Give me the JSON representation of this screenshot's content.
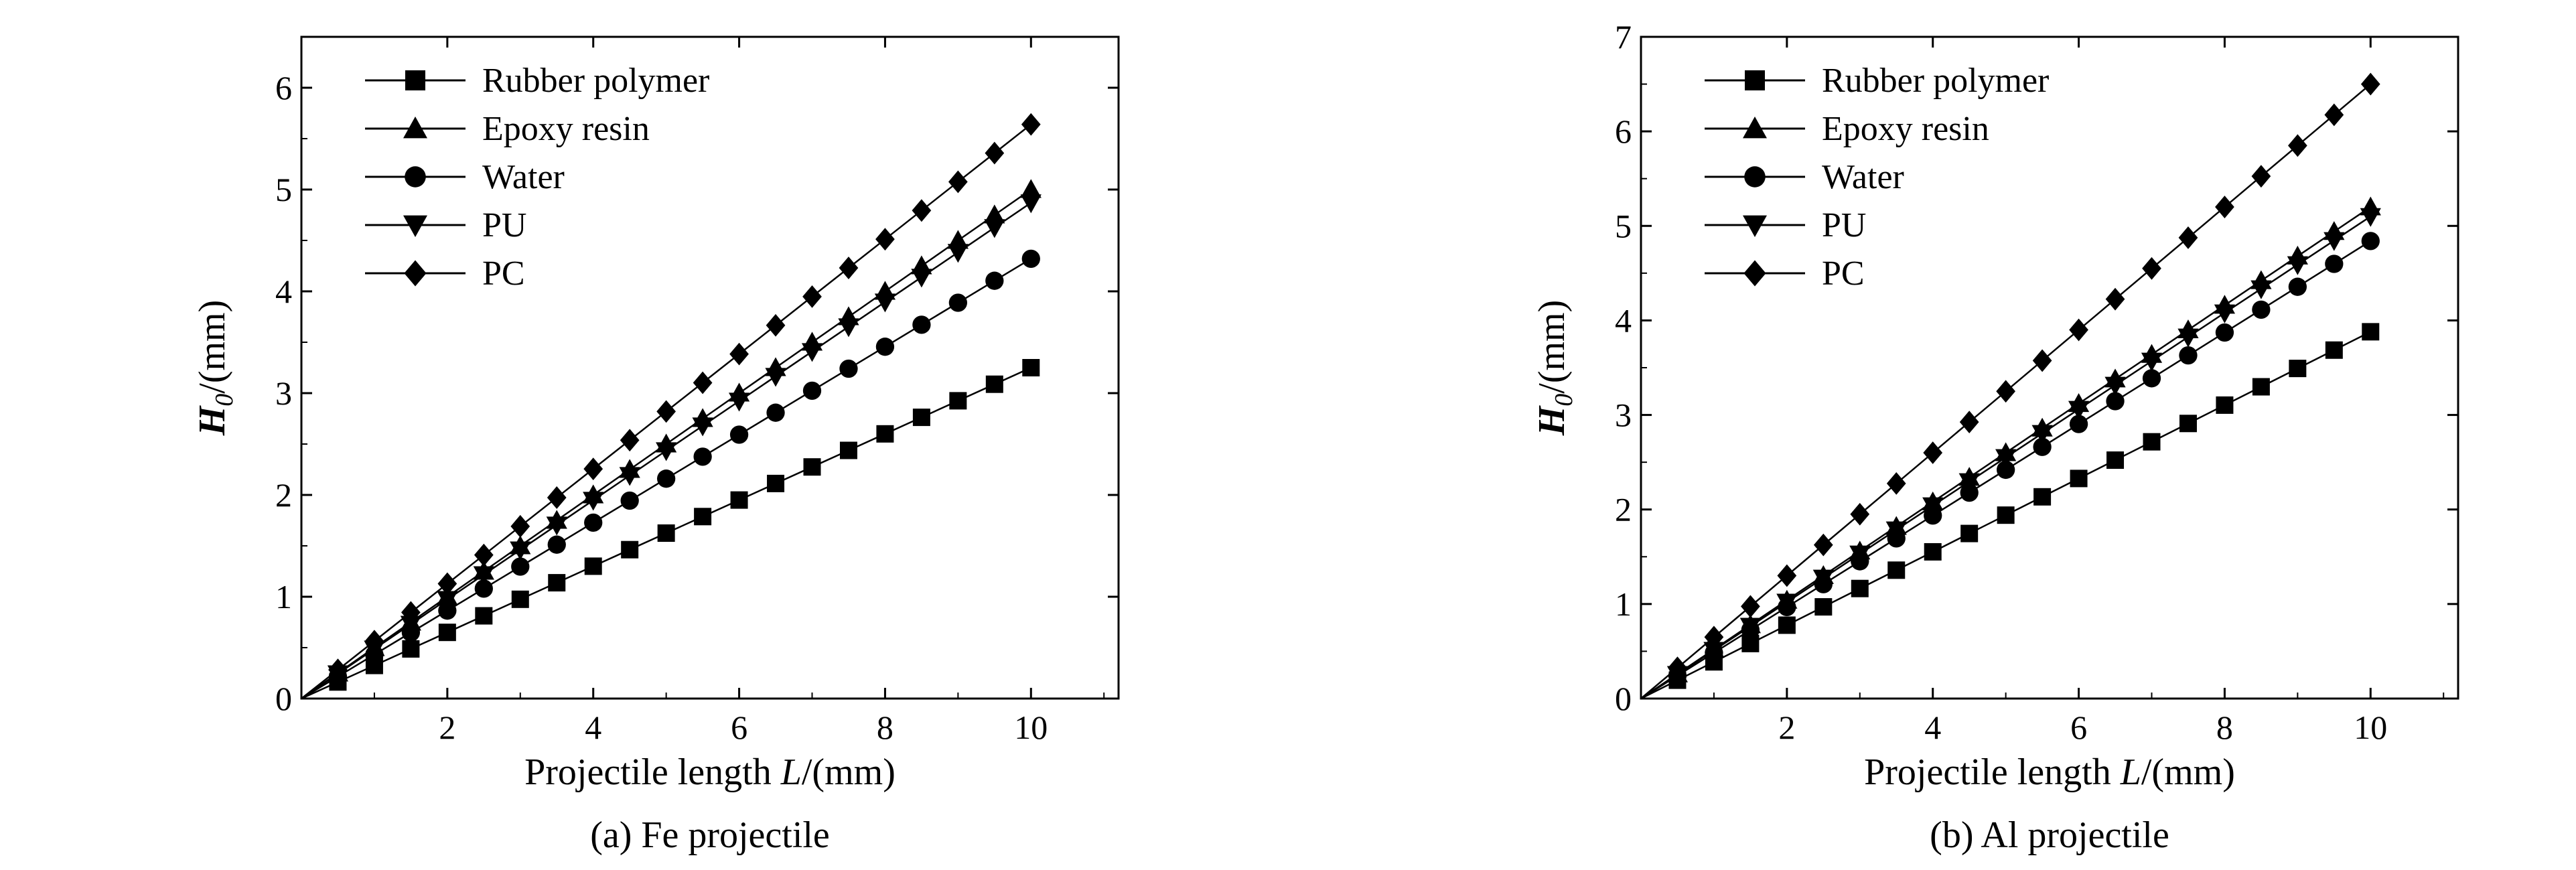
{
  "chart_data": [
    {
      "type": "line",
      "caption": "(a) Fe projectile",
      "xlabel_prefix": "Projectile length ",
      "xlabel_var": "L",
      "xlabel_unit": "/(mm)",
      "ylabel_var": "H",
      "ylabel_sub": "0",
      "ylabel_unit": "/(mm)",
      "xlim": [
        0,
        11.2
      ],
      "ylim": [
        0,
        6.5
      ],
      "xticks": [
        2,
        4,
        6,
        8,
        10
      ],
      "yticks": [
        0,
        1,
        2,
        3,
        4,
        5,
        6
      ],
      "x": [
        0,
        0.5,
        1,
        1.5,
        2,
        2.5,
        3,
        3.5,
        4,
        4.5,
        5,
        5.5,
        6,
        6.5,
        7,
        7.5,
        8,
        8.5,
        9,
        9.5,
        10
      ],
      "series": [
        {
          "name": "Rubber polymer",
          "marker": "square",
          "slope": 0.325
        },
        {
          "name": "Epoxy resin",
          "marker": "triangle-up",
          "slope": 0.5
        },
        {
          "name": "Water",
          "marker": "circle",
          "slope": 0.432
        },
        {
          "name": "PU",
          "marker": "triangle-down",
          "slope": 0.487
        },
        {
          "name": "PC",
          "marker": "diamond",
          "slope": 0.564
        }
      ]
    },
    {
      "type": "line",
      "caption": "(b) Al projectile",
      "xlabel_prefix": "Projectile length ",
      "xlabel_var": "L",
      "xlabel_unit": "/(mm)",
      "ylabel_var": "H",
      "ylabel_sub": "0",
      "ylabel_unit": "/(mm)",
      "xlim": [
        0,
        11.2
      ],
      "ylim": [
        0,
        7
      ],
      "xticks": [
        2,
        4,
        6,
        8,
        10
      ],
      "yticks": [
        0,
        1,
        2,
        3,
        4,
        5,
        6,
        7
      ],
      "x": [
        0,
        0.5,
        1,
        1.5,
        2,
        2.5,
        3,
        3.5,
        4,
        4.5,
        5,
        5.5,
        6,
        6.5,
        7,
        7.5,
        8,
        8.5,
        9,
        9.5,
        10
      ],
      "series": [
        {
          "name": "Rubber polymer",
          "marker": "square",
          "slope": 0.388
        },
        {
          "name": "Epoxy resin",
          "marker": "triangle-up",
          "slope": 0.52
        },
        {
          "name": "Water",
          "marker": "circle",
          "slope": 0.484
        },
        {
          "name": "PU",
          "marker": "triangle-down",
          "slope": 0.51
        },
        {
          "name": "PC",
          "marker": "diamond",
          "slope": 0.65
        }
      ]
    }
  ]
}
